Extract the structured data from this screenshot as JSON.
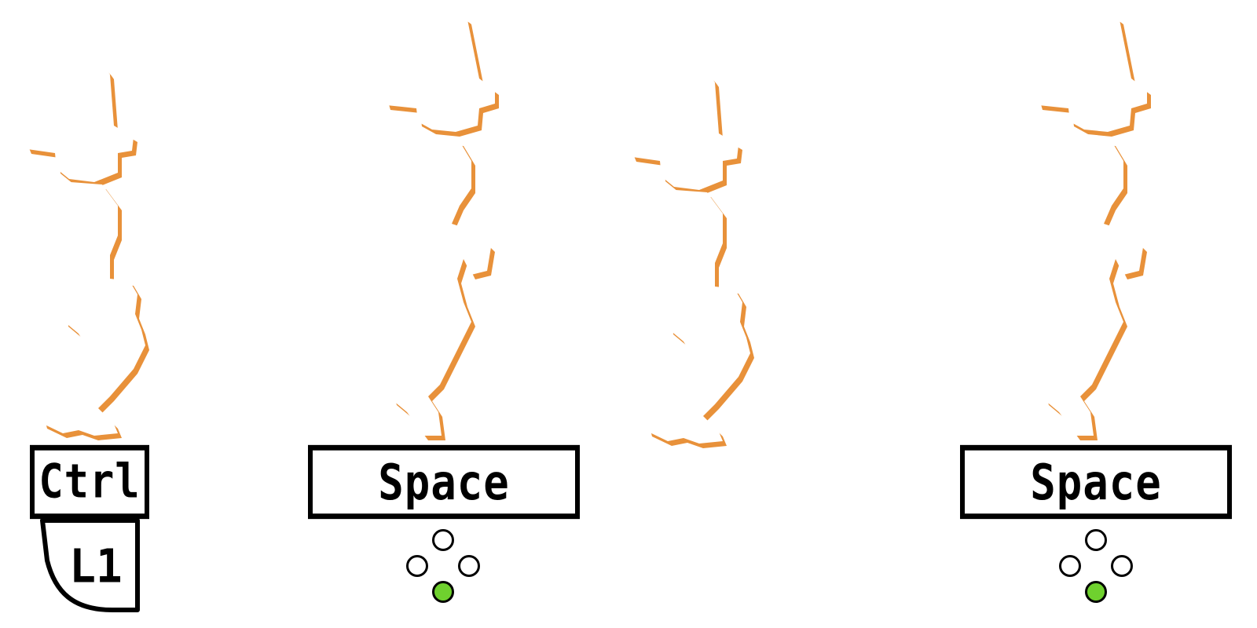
{
  "colors": {
    "figure_fill": "#ffffff",
    "figure_shadow": "#e8913a",
    "key_border": "#000000",
    "face_button_active": "#6fd12e"
  },
  "figures": [
    {
      "name": "pose-crouch-1"
    },
    {
      "name": "pose-jump-1"
    },
    {
      "name": "pose-crouch-2"
    },
    {
      "name": "pose-jump-2"
    }
  ],
  "prompts": {
    "crouch_key": "Ctrl",
    "crouch_pad": "L1",
    "jump_key_1": "Space",
    "jump_key_2": "Space"
  },
  "face_buttons": {
    "pressed": "bottom",
    "icon": "face-buttons-icon"
  }
}
